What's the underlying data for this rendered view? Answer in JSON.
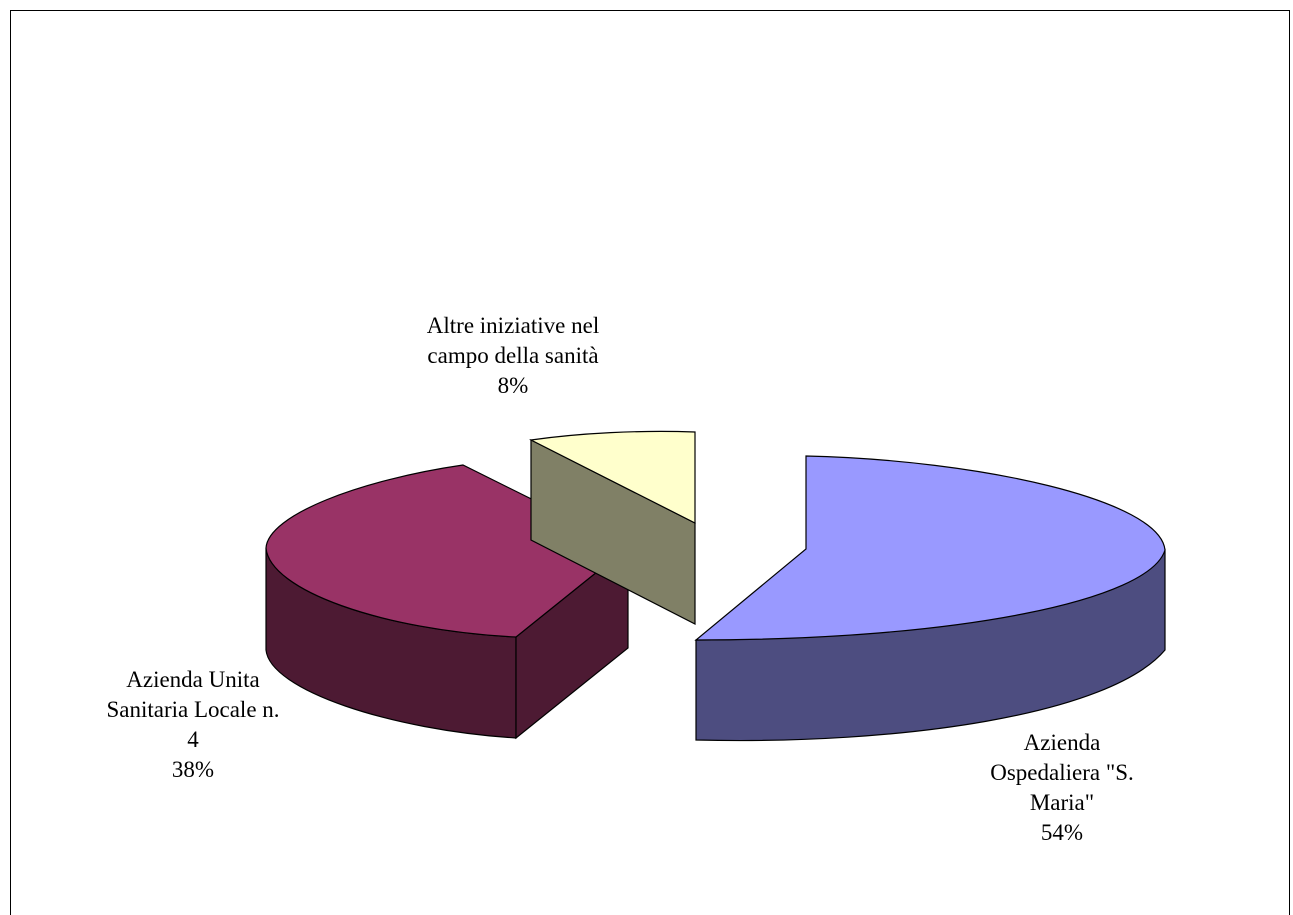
{
  "chart_data": {
    "type": "pie",
    "three_d": true,
    "exploded": true,
    "title": "",
    "legend": "none",
    "slices": [
      {
        "label_lines": [
          "Azienda",
          "Ospedaliera \"S.",
          "Maria\""
        ],
        "percent_label": "54%",
        "value": 54,
        "top_color": "#9999ff",
        "side_color": "#4d4d80"
      },
      {
        "label_lines": [
          "Azienda Unita",
          "Sanitaria Locale n.",
          "4"
        ],
        "percent_label": "38%",
        "value": 38,
        "top_color": "#993366",
        "side_color": "#4d1a33"
      },
      {
        "label_lines": [
          "Altre iniziative nel",
          "campo della sanità"
        ],
        "percent_label": "8%",
        "value": 8,
        "top_color": "#ffffcc",
        "side_color": "#808066"
      }
    ]
  }
}
